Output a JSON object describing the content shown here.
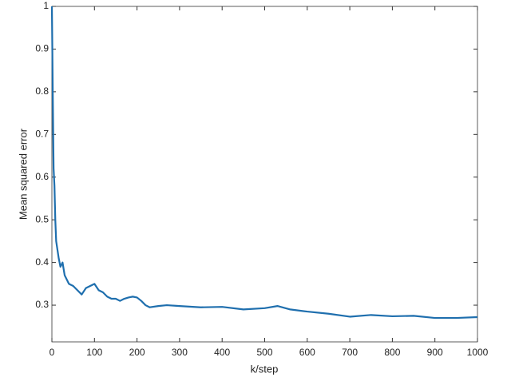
{
  "chart_data": {
    "type": "line",
    "xlabel": "k/step",
    "ylabel": "Mean squared error",
    "series": [
      {
        "color": "#1f6fae",
        "x": [
          0,
          2,
          4,
          6,
          8,
          10,
          13,
          16,
          20,
          25,
          30,
          35,
          40,
          50,
          60,
          70,
          80,
          90,
          100,
          110,
          120,
          130,
          140,
          150,
          160,
          170,
          180,
          190,
          200,
          210,
          220,
          230,
          250,
          270,
          300,
          350,
          400,
          450,
          500,
          530,
          560,
          600,
          650,
          700,
          750,
          800,
          850,
          900,
          950,
          1000
        ],
        "values": [
          1.0,
          0.8,
          0.62,
          0.58,
          0.5,
          0.45,
          0.43,
          0.41,
          0.39,
          0.4,
          0.37,
          0.36,
          0.35,
          0.345,
          0.335,
          0.325,
          0.34,
          0.345,
          0.35,
          0.335,
          0.33,
          0.32,
          0.315,
          0.315,
          0.31,
          0.315,
          0.318,
          0.32,
          0.318,
          0.31,
          0.3,
          0.295,
          0.298,
          0.3,
          0.298,
          0.295,
          0.296,
          0.29,
          0.293,
          0.298,
          0.29,
          0.285,
          0.28,
          0.273,
          0.277,
          0.274,
          0.275,
          0.27,
          0.27,
          0.272
        ]
      }
    ],
    "xlim": [
      0,
      1000
    ],
    "xticks": [
      0,
      100,
      200,
      300,
      400,
      500,
      600,
      700,
      800,
      900,
      1000
    ],
    "ylim": [
      0.214,
      1
    ],
    "yticks": [
      0.3,
      0.4,
      0.5,
      0.6,
      0.7,
      0.8,
      0.9,
      1
    ],
    "grid": false
  }
}
